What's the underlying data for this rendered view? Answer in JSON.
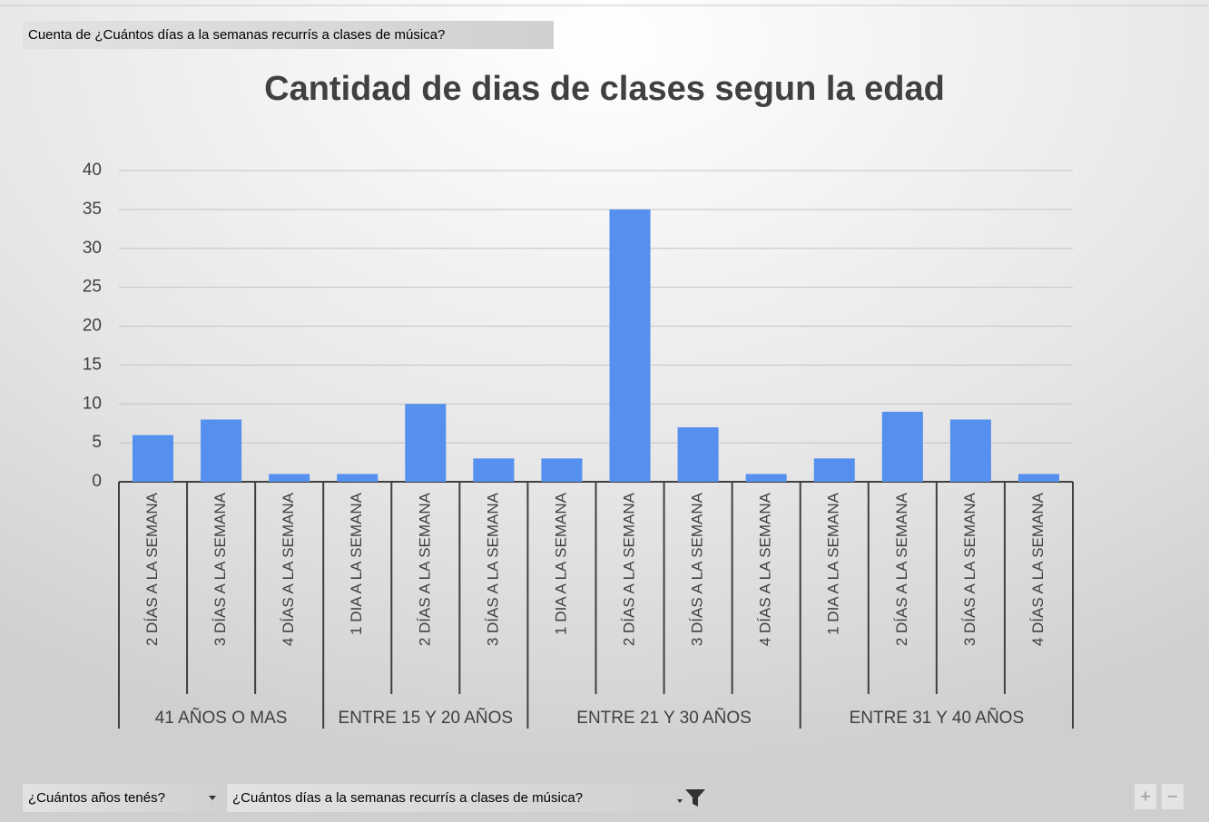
{
  "field_buttons": {
    "values_field": "Cuenta de ¿Cuántos días a la semanas recurrís a clases de música?",
    "axis_fields": [
      "¿Cuántos años tenés?",
      "¿Cuántos días a la semanas recurrís a clases de música?"
    ],
    "zoom": [
      "+",
      "−"
    ]
  },
  "chart_data": {
    "type": "bar",
    "title": "Cantidad de dias de clases segun la edad",
    "groups": [
      {
        "name": "41 AÑOS O MAS",
        "categories": [
          "2 DÍAS A LA SEMANA",
          "3 DÍAS A LA SEMANA",
          "4 DÍAS A LA SEMANA"
        ]
      },
      {
        "name": "ENTRE 15 Y 20 AÑOS",
        "categories": [
          "1 DIA A LA SEMANA",
          "2 DÍAS A LA SEMANA",
          "3 DÍAS A LA SEMANA"
        ]
      },
      {
        "name": "ENTRE 21 Y 30 AÑOS",
        "categories": [
          "1 DIA A LA SEMANA",
          "2 DÍAS A LA SEMANA",
          "3 DÍAS A LA SEMANA",
          "4 DÍAS A LA SEMANA"
        ]
      },
      {
        "name": "ENTRE 31 Y 40 AÑOS",
        "categories": [
          "1 DIA A LA SEMANA",
          "2 DÍAS A LA SEMANA",
          "3 DÍAS A LA SEMANA",
          "4 DÍAS A LA SEMANA"
        ]
      }
    ],
    "values": [
      6,
      8,
      1,
      1,
      10,
      3,
      3,
      35,
      7,
      1,
      3,
      9,
      8,
      1
    ],
    "color": "#5590ef",
    "ylim": [
      0,
      40
    ],
    "yticks": [
      0,
      5,
      10,
      15,
      20,
      25,
      30,
      35,
      40
    ],
    "grid": true
  }
}
